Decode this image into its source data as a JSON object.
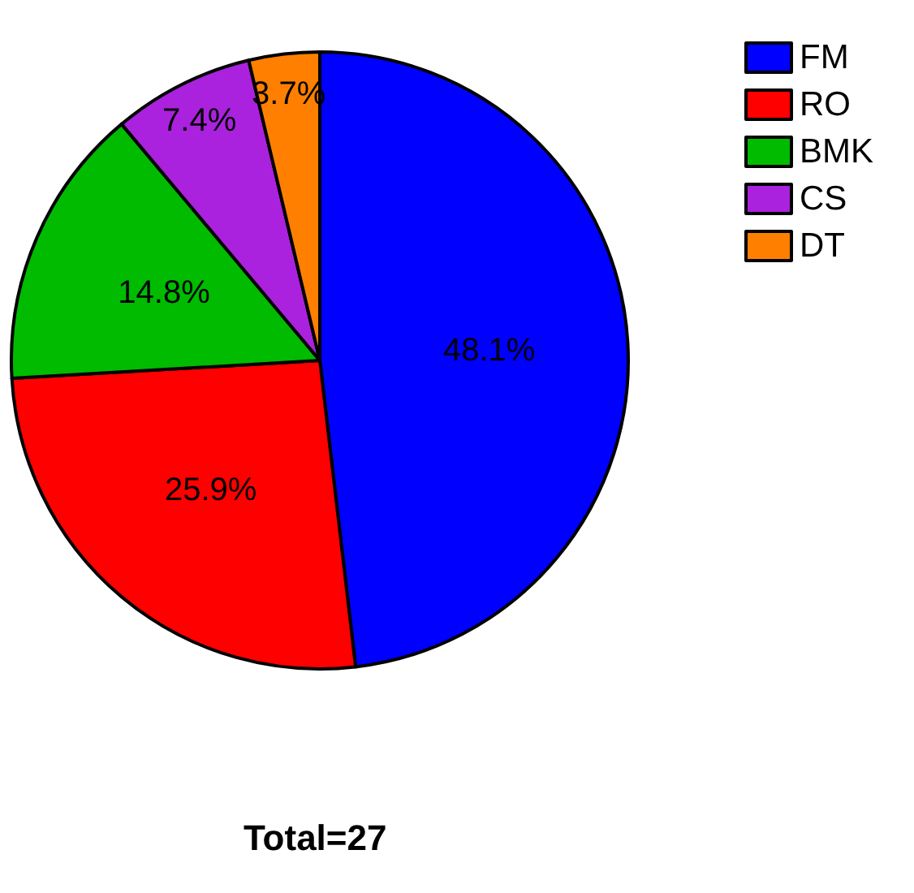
{
  "chart_data": {
    "type": "pie",
    "categories": [
      "FM",
      "RO",
      "BMK",
      "CS",
      "DT"
    ],
    "values": [
      48.1,
      25.9,
      14.8,
      7.4,
      3.7
    ],
    "value_labels": [
      "48.1%",
      "25.9%",
      "14.8%",
      "7.4%",
      "3.7%"
    ],
    "colors": [
      "#0000ff",
      "#ff0000",
      "#00bb00",
      "#aa22dd",
      "#ff8000"
    ],
    "legend": "top right",
    "annotations": [
      "Total=27"
    ]
  }
}
